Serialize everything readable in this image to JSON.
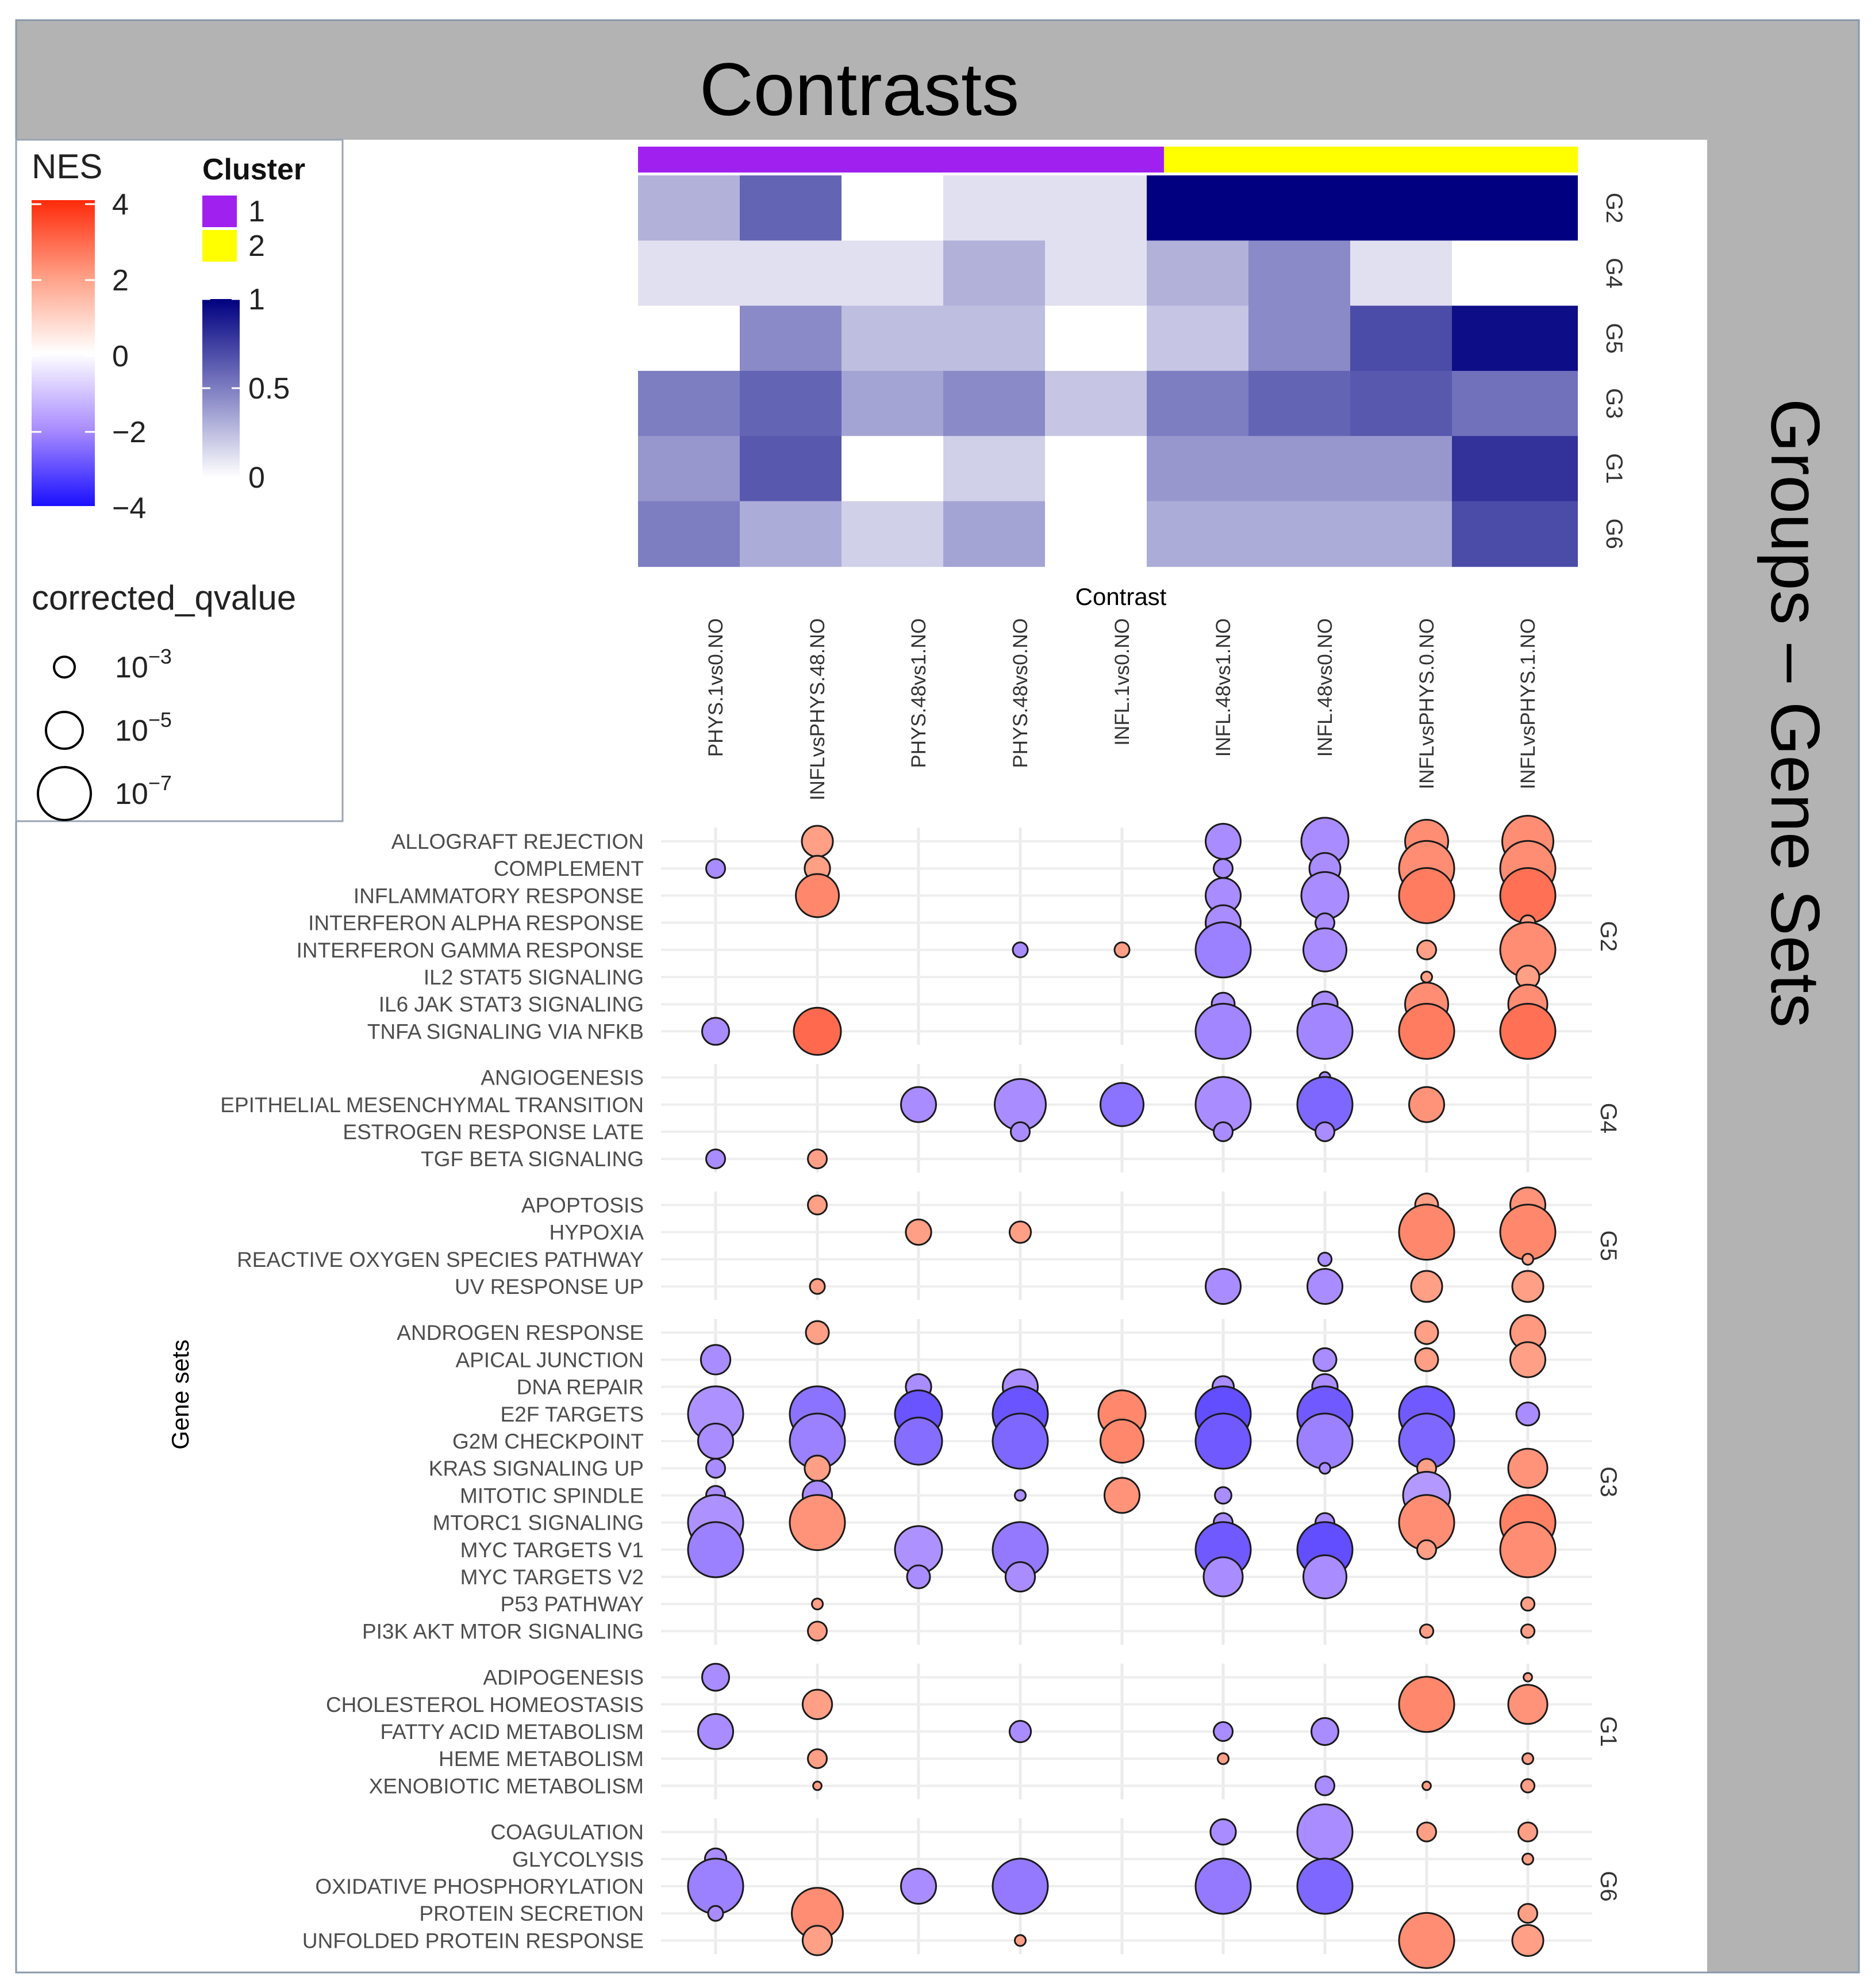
{
  "chart_data": {
    "type": "bubble-heatmap",
    "title": "Contrasts",
    "side_title": "Groups – Gene Sets",
    "xlabel": "Contrast",
    "ylabel": "Gene sets",
    "contrasts": [
      "PHYS.1vs0.NO",
      "INFLvsPHYS.48.NO",
      "PHYS.48vs1.NO",
      "PHYS.48vs0.NO",
      "INFL.1vs0.NO",
      "INFL.48vs1.NO",
      "INFL.48vs0.NO",
      "INFLvsPHYS.0.NO",
      "INFLvsPHYS.1.NO"
    ],
    "contrast_cluster": [
      1,
      1,
      1,
      1,
      1,
      2,
      2,
      2,
      2
    ],
    "heatmap": {
      "rows": [
        "G2",
        "G4",
        "G5",
        "G3",
        "G1",
        "G6"
      ],
      "values": [
        [
          0.3,
          0.6,
          0.0,
          0.12,
          0.12,
          1.0,
          1.0,
          1.0,
          1.0
        ],
        [
          0.12,
          0.12,
          0.12,
          0.3,
          0.12,
          0.3,
          0.45,
          0.12,
          0.0
        ],
        [
          0.0,
          0.45,
          0.25,
          0.25,
          0.0,
          0.22,
          0.45,
          0.7,
          0.95
        ],
        [
          0.5,
          0.6,
          0.35,
          0.45,
          0.22,
          0.5,
          0.6,
          0.65,
          0.55
        ],
        [
          0.4,
          0.65,
          0.0,
          0.18,
          0.0,
          0.4,
          0.4,
          0.4,
          0.8
        ],
        [
          0.5,
          0.32,
          0.18,
          0.35,
          0.0,
          0.32,
          0.32,
          0.32,
          0.7
        ]
      ],
      "scale": {
        "min": 0,
        "max": 1,
        "ticks": [
          "0",
          "0.5",
          "1"
        ]
      }
    },
    "groups": [
      {
        "name": "G2",
        "genes": [
          "ALLOGRAFT REJECTION",
          "COMPLEMENT",
          "INFLAMMATORY RESPONSE",
          "INTERFERON ALPHA RESPONSE",
          "INTERFERON GAMMA RESPONSE",
          "IL2 STAT5 SIGNALING",
          "IL6 JAK STAT3 SIGNALING",
          "TNFA SIGNALING VIA NFKB"
        ]
      },
      {
        "name": "G4",
        "genes": [
          "ANGIOGENESIS",
          "EPITHELIAL MESENCHYMAL TRANSITION",
          "ESTROGEN RESPONSE LATE",
          "TGF BETA SIGNALING"
        ]
      },
      {
        "name": "G5",
        "genes": [
          "APOPTOSIS",
          "HYPOXIA",
          "REACTIVE OXYGEN SPECIES PATHWAY",
          "UV RESPONSE UP"
        ]
      },
      {
        "name": "G3",
        "genes": [
          "ANDROGEN RESPONSE",
          "APICAL JUNCTION",
          "DNA REPAIR",
          "E2F TARGETS",
          "G2M CHECKPOINT",
          "KRAS SIGNALING UP",
          "MITOTIC SPINDLE",
          "MTORC1 SIGNALING",
          "MYC TARGETS V1",
          "MYC TARGETS V2",
          "P53 PATHWAY",
          "PI3K AKT MTOR SIGNALING"
        ]
      },
      {
        "name": "G1",
        "genes": [
          "ADIPOGENESIS",
          "CHOLESTEROL HOMEOSTASIS",
          "FATTY ACID METABOLISM",
          "HEME METABOLISM",
          "XENOBIOTIC METABOLISM"
        ]
      },
      {
        "name": "G6",
        "genes": [
          "COAGULATION",
          "GLYCOLYSIS",
          "OXIDATIVE PHOSPHORYLATION",
          "PROTEIN SECRETION",
          "UNFOLDED PROTEIN RESPONSE"
        ]
      }
    ],
    "bubbles_note": "each entry: [gene, contrast index, NES, -log10 corrected q-value]",
    "bubbles": [
      [
        "ALLOGRAFT REJECTION",
        1,
        2.0,
        4.0
      ],
      [
        "ALLOGRAFT REJECTION",
        5,
        -2.0,
        4.5
      ],
      [
        "ALLOGRAFT REJECTION",
        6,
        -2.0,
        6.0
      ],
      [
        "ALLOGRAFT REJECTION",
        7,
        2.3,
        5.5
      ],
      [
        "ALLOGRAFT REJECTION",
        8,
        2.3,
        6.5
      ],
      [
        "COMPLEMENT",
        0,
        -2.0,
        2.5
      ],
      [
        "COMPLEMENT",
        1,
        2.0,
        3.3
      ],
      [
        "COMPLEMENT",
        5,
        -2.0,
        2.5
      ],
      [
        "COMPLEMENT",
        6,
        -2.0,
        4.0
      ],
      [
        "COMPLEMENT",
        7,
        2.3,
        7.0
      ],
      [
        "COMPLEMENT",
        8,
        2.3,
        7.0
      ],
      [
        "INFLAMMATORY RESPONSE",
        1,
        2.4,
        5.5
      ],
      [
        "INFLAMMATORY RESPONSE",
        5,
        -2.0,
        4.5
      ],
      [
        "INFLAMMATORY RESPONSE",
        6,
        -2.0,
        6.0
      ],
      [
        "INFLAMMATORY RESPONSE",
        7,
        2.6,
        7.0
      ],
      [
        "INFLAMMATORY RESPONSE",
        8,
        2.8,
        7.0
      ],
      [
        "INTERFERON ALPHA RESPONSE",
        5,
        -2.0,
        4.5
      ],
      [
        "INTERFERON ALPHA RESPONSE",
        6,
        -2.0,
        2.5
      ],
      [
        "INTERFERON ALPHA RESPONSE",
        8,
        2.0,
        2.0
      ],
      [
        "INTERFERON GAMMA RESPONSE",
        3,
        -2.0,
        2.0
      ],
      [
        "INTERFERON GAMMA RESPONSE",
        4,
        2.0,
        2.0
      ],
      [
        "INTERFERON GAMMA RESPONSE",
        5,
        -2.2,
        7.0
      ],
      [
        "INTERFERON GAMMA RESPONSE",
        6,
        -2.0,
        5.5
      ],
      [
        "INTERFERON GAMMA RESPONSE",
        7,
        2.0,
        2.5
      ],
      [
        "INTERFERON GAMMA RESPONSE",
        8,
        2.3,
        7.0
      ],
      [
        "IL2 STAT5 SIGNALING",
        7,
        2.0,
        1.5
      ],
      [
        "IL2 STAT5 SIGNALING",
        8,
        2.0,
        3.0
      ],
      [
        "IL6 JAK STAT3 SIGNALING",
        5,
        -2.0,
        3.0
      ],
      [
        "IL6 JAK STAT3 SIGNALING",
        6,
        -2.0,
        3.3
      ],
      [
        "IL6 JAK STAT3 SIGNALING",
        7,
        2.3,
        5.5
      ],
      [
        "IL6 JAK STAT3 SIGNALING",
        8,
        2.3,
        5.0
      ],
      [
        "TNFA SIGNALING VIA NFKB",
        0,
        -2.0,
        3.5
      ],
      [
        "TNFA SIGNALING VIA NFKB",
        1,
        2.9,
        6.0
      ],
      [
        "TNFA SIGNALING VIA NFKB",
        5,
        -2.1,
        7.0
      ],
      [
        "TNFA SIGNALING VIA NFKB",
        6,
        -2.1,
        7.0
      ],
      [
        "TNFA SIGNALING VIA NFKB",
        7,
        2.6,
        7.0
      ],
      [
        "TNFA SIGNALING VIA NFKB",
        8,
        2.8,
        7.0
      ],
      [
        "ANGIOGENESIS",
        6,
        -2.0,
        1.5
      ],
      [
        "EPITHELIAL MESENCHYMAL TRANSITION",
        2,
        -2.0,
        4.5
      ],
      [
        "EPITHELIAL MESENCHYMAL TRANSITION",
        3,
        -2.0,
        6.5
      ],
      [
        "EPITHELIAL MESENCHYMAL TRANSITION",
        4,
        -2.4,
        5.5
      ],
      [
        "EPITHELIAL MESENCHYMAL TRANSITION",
        5,
        -2.0,
        7.0
      ],
      [
        "EPITHELIAL MESENCHYMAL TRANSITION",
        6,
        -2.6,
        7.0
      ],
      [
        "EPITHELIAL MESENCHYMAL TRANSITION",
        7,
        2.2,
        4.5
      ],
      [
        "ESTROGEN RESPONSE LATE",
        3,
        -2.0,
        2.5
      ],
      [
        "ESTROGEN RESPONSE LATE",
        5,
        -2.0,
        2.5
      ],
      [
        "ESTROGEN RESPONSE LATE",
        6,
        -2.0,
        2.5
      ],
      [
        "TGF BETA SIGNALING",
        0,
        -2.0,
        2.5
      ],
      [
        "TGF BETA SIGNALING",
        1,
        2.0,
        2.5
      ],
      [
        "APOPTOSIS",
        1,
        2.0,
        2.5
      ],
      [
        "APOPTOSIS",
        7,
        2.0,
        3.0
      ],
      [
        "APOPTOSIS",
        8,
        2.2,
        4.5
      ],
      [
        "HYPOXIA",
        2,
        2.0,
        3.3
      ],
      [
        "HYPOXIA",
        3,
        2.0,
        2.8
      ],
      [
        "HYPOXIA",
        7,
        2.4,
        7.0
      ],
      [
        "HYPOXIA",
        8,
        2.4,
        7.0
      ],
      [
        "REACTIVE OXYGEN SPECIES PATHWAY",
        6,
        -2.0,
        1.8
      ],
      [
        "REACTIVE OXYGEN SPECIES PATHWAY",
        8,
        2.0,
        1.5
      ],
      [
        "UV RESPONSE UP",
        1,
        2.0,
        2.0
      ],
      [
        "UV RESPONSE UP",
        5,
        -2.0,
        4.5
      ],
      [
        "UV RESPONSE UP",
        6,
        -2.0,
        4.5
      ],
      [
        "UV RESPONSE UP",
        7,
        2.0,
        4.0
      ],
      [
        "UV RESPONSE UP",
        8,
        2.0,
        4.0
      ],
      [
        "ANDROGEN RESPONSE",
        1,
        2.0,
        3.0
      ],
      [
        "ANDROGEN RESPONSE",
        7,
        2.0,
        3.0
      ],
      [
        "ANDROGEN RESPONSE",
        8,
        2.1,
        4.5
      ],
      [
        "APICAL JUNCTION",
        0,
        -2.0,
        3.8
      ],
      [
        "APICAL JUNCTION",
        6,
        -2.0,
        3.0
      ],
      [
        "APICAL JUNCTION",
        7,
        2.0,
        3.0
      ],
      [
        "APICAL JUNCTION",
        8,
        2.0,
        4.5
      ],
      [
        "DNA REPAIR",
        2,
        -2.0,
        3.3
      ],
      [
        "DNA REPAIR",
        3,
        -2.0,
        4.5
      ],
      [
        "DNA REPAIR",
        5,
        -2.0,
        2.8
      ],
      [
        "DNA REPAIR",
        6,
        -2.0,
        3.3
      ],
      [
        "E2F TARGETS",
        0,
        -1.9,
        7.0
      ],
      [
        "E2F TARGETS",
        1,
        -2.4,
        7.0
      ],
      [
        "E2F TARGETS",
        2,
        -2.9,
        6.0
      ],
      [
        "E2F TARGETS",
        3,
        -2.9,
        7.0
      ],
      [
        "E2F TARGETS",
        4,
        2.4,
        6.0
      ],
      [
        "E2F TARGETS",
        5,
        -3.0,
        7.0
      ],
      [
        "E2F TARGETS",
        6,
        -2.8,
        7.0
      ],
      [
        "E2F TARGETS",
        7,
        -2.8,
        7.0
      ],
      [
        "E2F TARGETS",
        8,
        -2.0,
        3.0
      ],
      [
        "G2M CHECKPOINT",
        0,
        -2.0,
        4.5
      ],
      [
        "G2M CHECKPOINT",
        1,
        -2.2,
        7.0
      ],
      [
        "G2M CHECKPOINT",
        2,
        -2.5,
        6.0
      ],
      [
        "G2M CHECKPOINT",
        3,
        -2.6,
        7.0
      ],
      [
        "G2M CHECKPOINT",
        4,
        2.4,
        5.5
      ],
      [
        "G2M CHECKPOINT",
        5,
        -2.8,
        7.0
      ],
      [
        "G2M CHECKPOINT",
        6,
        -2.2,
        7.0
      ],
      [
        "G2M CHECKPOINT",
        7,
        -2.6,
        7.0
      ],
      [
        "KRAS SIGNALING UP",
        0,
        -2.0,
        2.5
      ],
      [
        "KRAS SIGNALING UP",
        1,
        2.0,
        3.3
      ],
      [
        "KRAS SIGNALING UP",
        6,
        -2.0,
        1.5
      ],
      [
        "KRAS SIGNALING UP",
        7,
        2.0,
        2.5
      ],
      [
        "KRAS SIGNALING UP",
        8,
        2.2,
        5.0
      ],
      [
        "MITOTIC SPINDLE",
        0,
        -2.0,
        2.5
      ],
      [
        "MITOTIC SPINDLE",
        1,
        -2.0,
        3.8
      ],
      [
        "MITOTIC SPINDLE",
        3,
        -2.0,
        1.5
      ],
      [
        "MITOTIC SPINDLE",
        4,
        2.2,
        4.5
      ],
      [
        "MITOTIC SPINDLE",
        5,
        -2.0,
        2.2
      ],
      [
        "MITOTIC SPINDLE",
        7,
        -1.8,
        6.0
      ],
      [
        "MTORC1 SIGNALING",
        0,
        -1.9,
        7.0
      ],
      [
        "MTORC1 SIGNALING",
        1,
        2.2,
        7.0
      ],
      [
        "MTORC1 SIGNALING",
        5,
        -2.0,
        2.5
      ],
      [
        "MTORC1 SIGNALING",
        6,
        -2.0,
        2.5
      ],
      [
        "MTORC1 SIGNALING",
        7,
        2.3,
        7.0
      ],
      [
        "MTORC1 SIGNALING",
        8,
        2.5,
        7.0
      ],
      [
        "MYC TARGETS V1",
        0,
        -2.2,
        7.0
      ],
      [
        "MYC TARGETS V1",
        2,
        -1.9,
        6.0
      ],
      [
        "MYC TARGETS V1",
        3,
        -2.3,
        7.0
      ],
      [
        "MYC TARGETS V1",
        5,
        -2.8,
        7.0
      ],
      [
        "MYC TARGETS V1",
        6,
        -3.0,
        7.0
      ],
      [
        "MYC TARGETS V1",
        7,
        2.0,
        2.5
      ],
      [
        "MYC TARGETS V1",
        8,
        2.3,
        7.0
      ],
      [
        "MYC TARGETS V2",
        2,
        -2.0,
        3.0
      ],
      [
        "MYC TARGETS V2",
        3,
        -2.0,
        3.8
      ],
      [
        "MYC TARGETS V2",
        5,
        -2.0,
        5.0
      ],
      [
        "MYC TARGETS V2",
        6,
        -2.0,
        5.5
      ],
      [
        "P53 PATHWAY",
        1,
        2.0,
        1.5
      ],
      [
        "P53 PATHWAY",
        8,
        2.0,
        1.8
      ],
      [
        "PI3K AKT MTOR SIGNALING",
        1,
        2.0,
        2.5
      ],
      [
        "PI3K AKT MTOR SIGNALING",
        7,
        2.0,
        1.8
      ],
      [
        "PI3K AKT MTOR SIGNALING",
        8,
        2.0,
        1.8
      ],
      [
        "ADIPOGENESIS",
        0,
        -2.0,
        3.5
      ],
      [
        "ADIPOGENESIS",
        8,
        2.0,
        1.2
      ],
      [
        "CHOLESTEROL HOMEOSTASIS",
        1,
        2.0,
        3.8
      ],
      [
        "CHOLESTEROL HOMEOSTASIS",
        7,
        2.4,
        7.0
      ],
      [
        "CHOLESTEROL HOMEOSTASIS",
        8,
        2.2,
        5.0
      ],
      [
        "FATTY ACID METABOLISM",
        0,
        -2.0,
        4.5
      ],
      [
        "FATTY ACID METABOLISM",
        3,
        -2.0,
        2.8
      ],
      [
        "FATTY ACID METABOLISM",
        5,
        -2.0,
        2.5
      ],
      [
        "FATTY ACID METABOLISM",
        6,
        -2.0,
        3.5
      ],
      [
        "HEME METABOLISM",
        1,
        2.0,
        2.5
      ],
      [
        "HEME METABOLISM",
        5,
        2.0,
        1.5
      ],
      [
        "HEME METABOLISM",
        8,
        2.0,
        1.5
      ],
      [
        "XENOBIOTIC METABOLISM",
        1,
        2.0,
        1.2
      ],
      [
        "XENOBIOTIC METABOLISM",
        6,
        -2.0,
        2.5
      ],
      [
        "XENOBIOTIC METABOLISM",
        7,
        2.0,
        1.2
      ],
      [
        "XENOBIOTIC METABOLISM",
        8,
        2.0,
        1.8
      ],
      [
        "COAGULATION",
        5,
        -2.0,
        3.3
      ],
      [
        "COAGULATION",
        6,
        -2.0,
        7.0
      ],
      [
        "COAGULATION",
        7,
        2.0,
        2.5
      ],
      [
        "COAGULATION",
        8,
        2.0,
        2.5
      ],
      [
        "GLYCOLYSIS",
        0,
        -2.0,
        2.8
      ],
      [
        "GLYCOLYSIS",
        8,
        2.0,
        1.5
      ],
      [
        "OXIDATIVE PHOSPHORYLATION",
        0,
        -2.2,
        7.0
      ],
      [
        "OXIDATIVE PHOSPHORYLATION",
        2,
        -2.0,
        4.5
      ],
      [
        "OXIDATIVE PHOSPHORYLATION",
        3,
        -2.3,
        7.0
      ],
      [
        "OXIDATIVE PHOSPHORYLATION",
        5,
        -2.3,
        7.0
      ],
      [
        "OXIDATIVE PHOSPHORYLATION",
        6,
        -2.6,
        7.0
      ],
      [
        "PROTEIN SECRETION",
        0,
        -2.0,
        2.0
      ],
      [
        "PROTEIN SECRETION",
        1,
        2.3,
        6.5
      ],
      [
        "PROTEIN SECRETION",
        8,
        2.0,
        2.5
      ],
      [
        "UNFOLDED PROTEIN RESPONSE",
        1,
        2.0,
        3.8
      ],
      [
        "UNFOLDED PROTEIN RESPONSE",
        3,
        2.0,
        1.5
      ],
      [
        "UNFOLDED PROTEIN RESPONSE",
        7,
        2.3,
        7.0
      ],
      [
        "UNFOLDED PROTEIN RESPONSE",
        8,
        2.0,
        4.0
      ]
    ],
    "legend": {
      "nes_title": "NES",
      "nes_ticks": [
        "4",
        "2",
        "0",
        "−2",
        "−4"
      ],
      "nes_range": [
        -4,
        4
      ],
      "cluster_title": "Cluster",
      "clusters": [
        {
          "label": "1",
          "color": "#a020f0"
        },
        {
          "label": "2",
          "color": "#ffff00"
        }
      ],
      "q_title": "corrected_qvalue",
      "q_entries": [
        {
          "base": "10",
          "exp": "−3",
          "neglog10": 3
        },
        {
          "base": "10",
          "exp": "−5",
          "neglog10": 5
        },
        {
          "base": "10",
          "exp": "−7",
          "neglog10": 7
        }
      ]
    }
  }
}
